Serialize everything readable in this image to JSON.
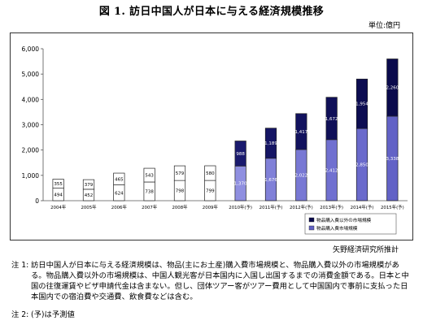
{
  "header": {
    "title": "図 1. 訪日中国人が日本に与える経済規模推移",
    "unit": "単位:億円"
  },
  "chart_data": {
    "type": "bar",
    "stacked": true,
    "categories": [
      "2004年",
      "2005年",
      "2006年",
      "2007年",
      "2008年",
      "2009年",
      "2010年(予)",
      "2011年(予)",
      "2012年(予)",
      "2013年(予)",
      "2014年(予)",
      "2015年(予)"
    ],
    "series": [
      {
        "name": "物品購入費市場規模",
        "labels": [
          "494",
          "452",
          "624",
          "738",
          "798",
          "799",
          "1,370",
          "1,676",
          "2,022",
          "2,412",
          "2,850",
          "3,338"
        ],
        "values": [
          494,
          452,
          624,
          738,
          798,
          799,
          1370,
          1676,
          2022,
          2412,
          2850,
          3338
        ],
        "colors": [
          "#ffffff",
          "#ffffff",
          "#ffffff",
          "#ffffff",
          "#ffffff",
          "#ffffff",
          "#8f8fe0",
          "#8080d8",
          "#7878d4",
          "#7070d0",
          "#6a6acc",
          "#6262c6"
        ]
      },
      {
        "name": "物品購入費以外の市場規模",
        "labels": [
          "355",
          "379",
          "465",
          "543",
          "579",
          "580",
          "988",
          "1,189",
          "1,417",
          "1,672",
          "1,954",
          "2,260"
        ],
        "values": [
          355,
          379,
          465,
          543,
          579,
          580,
          988,
          1189,
          1417,
          1672,
          1954,
          2260
        ],
        "colors": [
          "#ffffff",
          "#ffffff",
          "#ffffff",
          "#ffffff",
          "#ffffff",
          "#ffffff",
          "#1a1a6e",
          "#151565",
          "#12125e",
          "#101058",
          "#0d0d52",
          "#0a0a4c"
        ]
      }
    ],
    "ylim": [
      0,
      6000
    ],
    "yticks": [
      "0",
      "1,000",
      "2,000",
      "3,000",
      "4,000",
      "5,000",
      "6,000"
    ],
    "ytick_values": [
      0,
      1000,
      2000,
      3000,
      4000,
      5000,
      6000
    ],
    "grid": false,
    "legend": "bottom-right",
    "xlabel": "",
    "ylabel": ""
  },
  "footer": {
    "source": "矢野経済研究所推計",
    "note1_prefix": "注 1:",
    "note1_text": "訪日中国人が日本に与える経済規模は、物品(主にお土産)購入費市場規模と、物品購入費以外の市場規模がある。物品購入費以外の市場規模は、中国人観光客が日本国内に入国し出国するまでの消費金額である。日本と中国の往復運賃やビザ申請代金は含まない。但し、団体ツアー客がツアー費用として中国国内で事前に支払った日本国内での宿泊費や交通費、飲食費などは含む。",
    "note2_prefix": "注 2:",
    "note2_text": "(予)は予測値"
  }
}
